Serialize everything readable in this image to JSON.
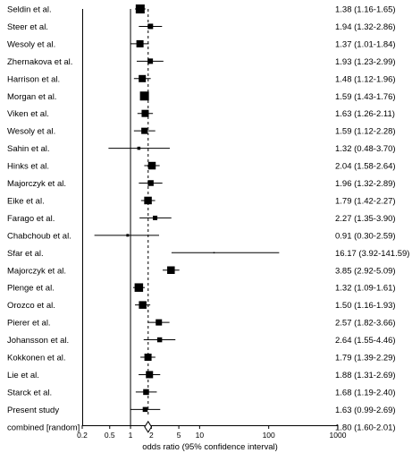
{
  "chart_data": {
    "type": "forest",
    "xlabel": "odds ratio (95% confidence interval)",
    "x_scale": "log",
    "xlim": [
      0.2,
      1000
    ],
    "x_ticks": [
      0.2,
      0.5,
      1,
      2,
      5,
      10,
      100,
      1000
    ],
    "x_tick_labels": [
      "0.2",
      "0.5",
      "1",
      "2",
      "5",
      "10",
      "100",
      "1000"
    ],
    "reference_line": 1,
    "pooled_line": 1.8,
    "studies": [
      {
        "label": "Seldin et al.",
        "or": 1.38,
        "lo": 1.16,
        "hi": 1.65,
        "text": "1.38 (1.16-1.65)",
        "weight": 1.0
      },
      {
        "label": "Steer et al.",
        "or": 1.94,
        "lo": 1.32,
        "hi": 2.86,
        "text": "1.94 (1.32-2.86)",
        "weight": 0.6
      },
      {
        "label": "Wesoly et al.",
        "or": 1.37,
        "lo": 1.01,
        "hi": 1.84,
        "text": "1.37 (1.01-1.84)",
        "weight": 0.8
      },
      {
        "label": "Zhernakova et al.",
        "or": 1.93,
        "lo": 1.23,
        "hi": 2.99,
        "text": "1.93 (1.23-2.99)",
        "weight": 0.6
      },
      {
        "label": "Harrison et al.",
        "or": 1.48,
        "lo": 1.12,
        "hi": 1.96,
        "text": "1.48 (1.12-1.96)",
        "weight": 0.8
      },
      {
        "label": "Morgan et al.",
        "or": 1.59,
        "lo": 1.43,
        "hi": 1.76,
        "text": "1.59 (1.43-1.76)",
        "weight": 1.0
      },
      {
        "label": "Viken et al.",
        "or": 1.63,
        "lo": 1.26,
        "hi": 2.11,
        "text": "1.63 (1.26-2.11)",
        "weight": 0.8
      },
      {
        "label": "Wesoly et al.",
        "or": 1.59,
        "lo": 1.12,
        "hi": 2.28,
        "text": "1.59 (1.12-2.28)",
        "weight": 0.7
      },
      {
        "label": "Sahin et al.",
        "or": 1.32,
        "lo": 0.48,
        "hi": 3.7,
        "text": "1.32 (0.48-3.70)",
        "weight": 0.35
      },
      {
        "label": "Hinks et al.",
        "or": 2.04,
        "lo": 1.58,
        "hi": 2.64,
        "text": "2.04 (1.58-2.64)",
        "weight": 0.85
      },
      {
        "label": "Majorczyk et al.",
        "or": 1.96,
        "lo": 1.32,
        "hi": 2.89,
        "text": "1.96 (1.32-2.89)",
        "weight": 0.65
      },
      {
        "label": "Eike et al.",
        "or": 1.79,
        "lo": 1.42,
        "hi": 2.27,
        "text": "1.79 (1.42-2.27)",
        "weight": 0.85
      },
      {
        "label": "Farago et al.",
        "or": 2.27,
        "lo": 1.35,
        "hi": 3.9,
        "text": "2.27 (1.35-3.90)",
        "weight": 0.5
      },
      {
        "label": "Chabchoub et al.",
        "or": 0.91,
        "lo": 0.3,
        "hi": 2.59,
        "text": "0.91 (0.30-2.59)",
        "weight": 0.3
      },
      {
        "label": "Sfar et al.",
        "or": 16.17,
        "lo": 3.92,
        "hi": 141.59,
        "text": "16.17 (3.92-141.59)",
        "weight": 0.15
      },
      {
        "label": "Majorczyk et al.",
        "or": 3.85,
        "lo": 2.92,
        "hi": 5.09,
        "text": "3.85 (2.92-5.09)",
        "weight": 0.85
      },
      {
        "label": "Plenge et al.",
        "or": 1.32,
        "lo": 1.09,
        "hi": 1.61,
        "text": "1.32 (1.09-1.61)",
        "weight": 0.95
      },
      {
        "label": "Orozco et al.",
        "or": 1.5,
        "lo": 1.16,
        "hi": 1.93,
        "text": "1.50 (1.16-1.93)",
        "weight": 0.85
      },
      {
        "label": "Pierer et al.",
        "or": 2.57,
        "lo": 1.82,
        "hi": 3.66,
        "text": "2.57 (1.82-3.66)",
        "weight": 0.7
      },
      {
        "label": "Johansson et al.",
        "or": 2.64,
        "lo": 1.55,
        "hi": 4.46,
        "text": "2.64 (1.55-4.46)",
        "weight": 0.55
      },
      {
        "label": "Kokkonen et al.",
        "or": 1.79,
        "lo": 1.39,
        "hi": 2.29,
        "text": "1.79 (1.39-2.29)",
        "weight": 0.8
      },
      {
        "label": "Lie et al.",
        "or": 1.88,
        "lo": 1.31,
        "hi": 2.69,
        "text": "1.88 (1.31-2.69)",
        "weight": 0.8
      },
      {
        "label": "Starck et al.",
        "or": 1.68,
        "lo": 1.19,
        "hi": 2.4,
        "text": "1.68 (1.19-2.40)",
        "weight": 0.65
      },
      {
        "label": "Present study",
        "or": 1.63,
        "lo": 0.99,
        "hi": 2.69,
        "text": "1.63 (0.99-2.69)",
        "weight": 0.55
      }
    ],
    "combined": {
      "label": "combined [random]",
      "or": 1.8,
      "lo": 1.6,
      "hi": 2.01,
      "text": "1.80 (1.60-2.01)"
    }
  }
}
